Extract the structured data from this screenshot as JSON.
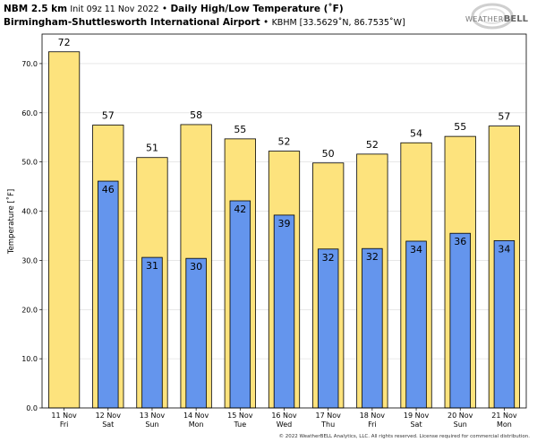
{
  "header": {
    "model": "NBM 2.5 km",
    "init": "Init 09z 11 Nov 2022",
    "sep1": "•",
    "product": "Daily High/Low Temperature (˚F)",
    "station": "Birmingham-Shuttlesworth International Airport",
    "sep2": "•",
    "station_info": "KBHM [33.5629˚N, 86.7535˚W]"
  },
  "logo": {
    "small": "WEATHER",
    "big": "BELL"
  },
  "copyright": "© 2022 WeatherBELL Analytics, LLC. All rights reserved. License required for commercial distribution.",
  "colors": {
    "high": "#fde37d",
    "low": "#6495ed",
    "outline": "#000000"
  },
  "chart_data": {
    "type": "bar",
    "categories": [
      "11 Nov|Fri",
      "12 Nov|Sat",
      "13 Nov|Sun",
      "14 Nov|Mon",
      "15 Nov|Tue",
      "16 Nov|Wed",
      "17 Nov|Thu",
      "18 Nov|Fri",
      "19 Nov|Sat",
      "20 Nov|Sun",
      "21 Nov|Mon"
    ],
    "series": [
      {
        "values": [
          72.4,
          57.5,
          50.9,
          57.6,
          54.7,
          52.2,
          49.8,
          51.6,
          53.9,
          55.2,
          57.3
        ],
        "labels": [
          "72",
          "57",
          "51",
          "58",
          "55",
          "52",
          "50",
          "52",
          "54",
          "55",
          "57"
        ]
      },
      {
        "values": [
          null,
          46.1,
          30.6,
          30.4,
          42.1,
          39.2,
          32.3,
          32.4,
          33.9,
          35.5,
          34.0
        ],
        "labels": [
          "",
          "46",
          "31",
          "30",
          "42",
          "39",
          "32",
          "32",
          "34",
          "36",
          "34"
        ]
      }
    ],
    "ylabel": "Temperature [˚F]",
    "ylim": [
      0,
      76
    ],
    "yticks": [
      0,
      10,
      20,
      30,
      40,
      50,
      60,
      70
    ],
    "ytick_labels": [
      "0.0",
      "10.0",
      "20.0",
      "30.0",
      "40.0",
      "50.0",
      "60.0",
      "70.0"
    ]
  }
}
